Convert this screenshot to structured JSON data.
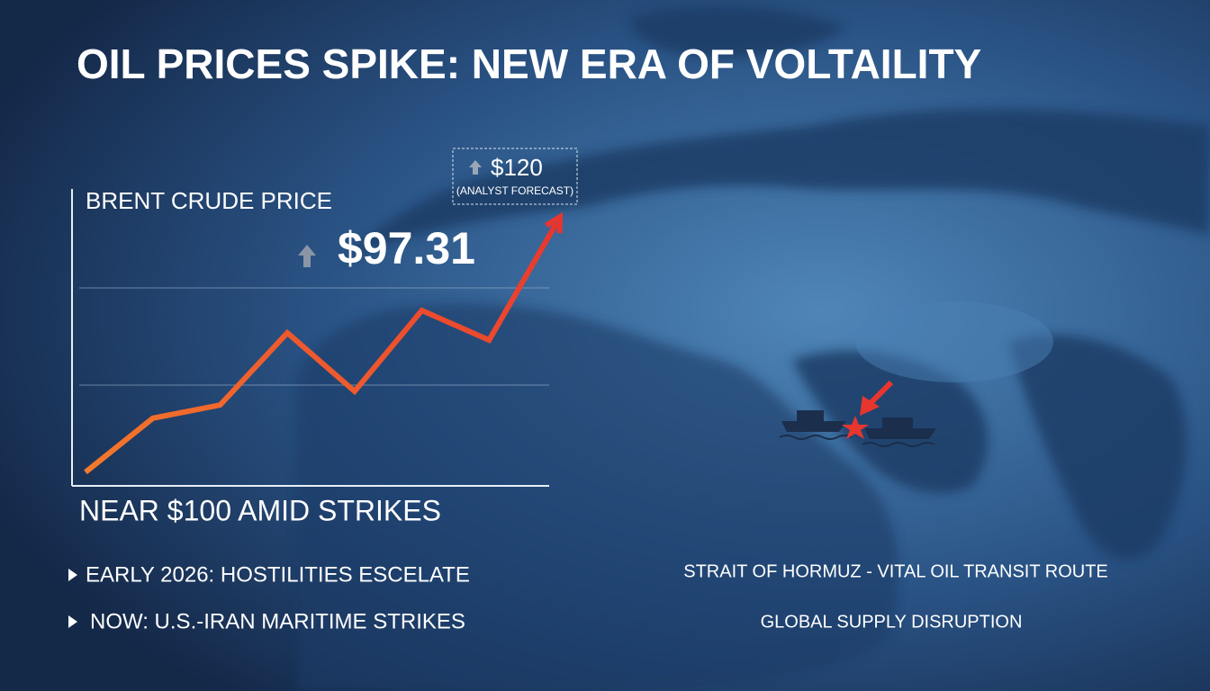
{
  "chart_data": {
    "type": "line",
    "title": "OIL PRICES SPIKE: NEW ERA OF VOLTAILITY",
    "y_label": "BRENT CRUDE PRICE",
    "price": "$97.31",
    "forecast": "$120",
    "forecast_note": "(ANALYST FORECAST)",
    "subtitle": "NEAR $100 AMID STRIKES",
    "bullets": [
      "EARLY 2026: HOSTILITIES ESCELATE",
      "NOW: U.S.-IRAN MARITIME STRIKES"
    ],
    "map_labels": [
      "STRAIT OF HORMUZ - VITAL OIL TRANSIT ROUTE",
      "GLOBAL SUPPLY DISRUPTION"
    ],
    "categories": [
      null,
      null,
      null,
      null,
      null,
      null,
      null,
      null
    ],
    "values": [
      63,
      74.8,
      77.7,
      93.5,
      80.7,
      98.4,
      91.9,
      117.5
    ],
    "ylim": [
      60,
      125
    ],
    "colors": [
      "#f47a2c",
      "#e8352e"
    ]
  }
}
